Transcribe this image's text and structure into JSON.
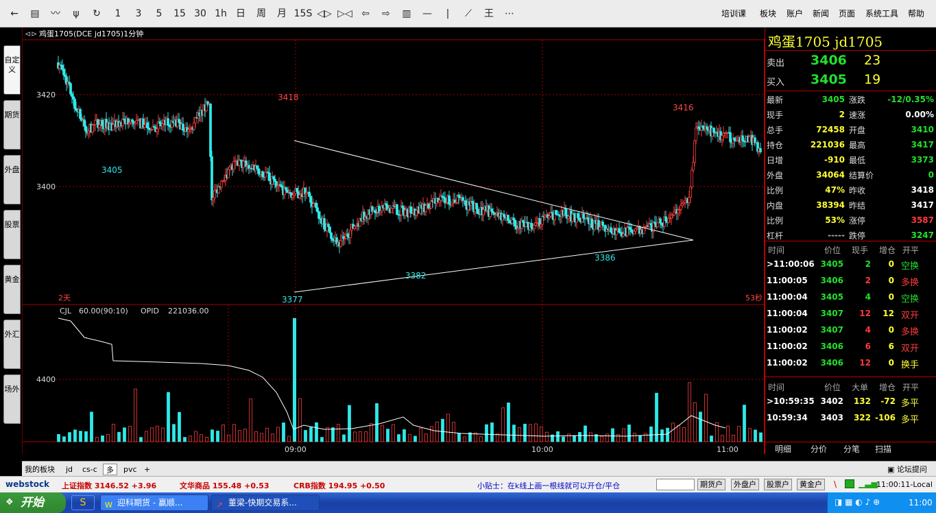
{
  "toolbar": {
    "icons": [
      "back-arrow-icon",
      "list-icon",
      "line-chart-icon",
      "candlestick-icon",
      "refresh-icon"
    ],
    "periods": [
      "1",
      "3",
      "5",
      "15",
      "30",
      "1h",
      "日",
      "周",
      "月",
      "15S"
    ],
    "tools": [
      "zoom-in-icon",
      "zoom-out-icon",
      "left-arrow-icon",
      "right-arrow-icon",
      "layout-icon",
      "hline-icon",
      "vline-icon",
      "draw-line-icon",
      "king-icon",
      "more-icon"
    ],
    "menus": [
      "培训课",
      "板块",
      "账户",
      "新闻",
      "页面",
      "系统工具",
      "帮助"
    ]
  },
  "side_tabs": [
    "自定义",
    "期货",
    "外盘",
    "股票",
    "黄金",
    "外汇",
    "场外"
  ],
  "chart": {
    "header": "鸡蛋1705(DCE jd1705)1分钟",
    "price_ticks": [
      "3420",
      "3400"
    ],
    "labels": {
      "hi1": "3418",
      "lo1": "3405",
      "lo2": "3377",
      "lo3": "3382",
      "lo4": "3386",
      "hi2": "3416"
    },
    "days": "2天",
    "countdown": "53秒",
    "volume_header": {
      "name": "CJL",
      "params": "60.00(90:10)",
      "opid_label": "OPID",
      "opid_value": "221036.00"
    },
    "volume_tick": "4400",
    "time_ticks": [
      "09:00",
      "10:00",
      "11:00"
    ]
  },
  "chart_data": {
    "type": "candlestick",
    "title": "鸡蛋1705(DCE jd1705)1分钟",
    "ylim": [
      3372,
      3430
    ],
    "price_ticks": [
      3420,
      3400
    ],
    "annotations": [
      3418,
      3405,
      3377,
      3382,
      3386,
      3416
    ],
    "x_ticks": [
      "09:00",
      "10:00",
      "11:00"
    ]
  },
  "quote": {
    "title": "鸡蛋1705  jd1705",
    "sell": {
      "label": "卖出",
      "price": "3406",
      "vol": "23"
    },
    "buy": {
      "label": "买入",
      "price": "3405",
      "vol": "19"
    },
    "rows": [
      {
        "l1": "最新",
        "v1": "3405",
        "c1": "green",
        "l2": "涨跌",
        "v2": "-12/0.35%",
        "c2": "green"
      },
      {
        "l1": "现手",
        "v1": "2",
        "c1": "yellow",
        "l2": "速涨",
        "v2": "0.00%",
        "c2": "white"
      },
      {
        "l1": "总手",
        "v1": "72458",
        "c1": "yellow",
        "l2": "开盘",
        "v2": "3410",
        "c2": "green"
      },
      {
        "l1": "持仓",
        "v1": "221036",
        "c1": "yellow",
        "l2": "最高",
        "v2": "3417",
        "c2": "green"
      },
      {
        "l1": "日增",
        "v1": "-910",
        "c1": "yellow",
        "l2": "最低",
        "v2": "3373",
        "c2": "green"
      },
      {
        "l1": "外盘",
        "v1": "34064",
        "c1": "yellow",
        "l2": "结算价",
        "v2": "0",
        "c2": "green"
      },
      {
        "l1": "比例",
        "v1": "47%",
        "c1": "yellow",
        "l2": "昨收",
        "v2": "3418",
        "c2": "white"
      },
      {
        "l1": "内盘",
        "v1": "38394",
        "c1": "yellow",
        "l2": "昨结",
        "v2": "3417",
        "c2": "white"
      },
      {
        "l1": "比例",
        "v1": "53%",
        "c1": "yellow",
        "l2": "涨停",
        "v2": "3587",
        "c2": "red"
      },
      {
        "l1": "杠杆",
        "v1": "-----",
        "c1": "gray",
        "l2": "跌停",
        "v2": "3247",
        "c2": "green"
      }
    ],
    "ticks_header": [
      "时间",
      "价位",
      "现手",
      "增仓",
      "开平"
    ],
    "ticks": [
      {
        "t": ">11:00:06",
        "p": "3405",
        "pc": "green",
        "v": "2",
        "vc": "green",
        "z": "0",
        "k": "空换",
        "kc": "green"
      },
      {
        "t": "11:00:05",
        "p": "3406",
        "pc": "green",
        "v": "2",
        "vc": "red",
        "z": "0",
        "k": "多换",
        "kc": "red"
      },
      {
        "t": "11:00:04",
        "p": "3405",
        "pc": "green",
        "v": "4",
        "vc": "green",
        "z": "0",
        "k": "空换",
        "kc": "green"
      },
      {
        "t": "11:00:04",
        "p": "3407",
        "pc": "green",
        "v": "12",
        "vc": "red",
        "z": "12",
        "k": "双开",
        "kc": "red"
      },
      {
        "t": "11:00:02",
        "p": "3407",
        "pc": "green",
        "v": "4",
        "vc": "red",
        "z": "0",
        "k": "多换",
        "kc": "red"
      },
      {
        "t": "11:00:02",
        "p": "3406",
        "pc": "green",
        "v": "6",
        "vc": "red",
        "z": "6",
        "k": "双开",
        "kc": "red"
      },
      {
        "t": "11:00:02",
        "p": "3406",
        "pc": "green",
        "v": "12",
        "vc": "red",
        "z": "0",
        "k": "换手",
        "kc": "yellow"
      }
    ],
    "big_header": [
      "时间",
      "价位",
      "大单",
      "增仓",
      "开平"
    ],
    "big": [
      {
        "t": ">10:59:35",
        "p": "3402",
        "v": "132",
        "z": "-72",
        "k": "多平"
      },
      {
        "t": "10:59:34",
        "p": "3403",
        "v": "322",
        "z": "-106",
        "k": "多平"
      }
    ],
    "tabs": [
      "明细",
      "分价",
      "分笔",
      "扫描"
    ]
  },
  "bottom_tabs": [
    "我的板块",
    "jd",
    "cs-c",
    "多",
    "pvc",
    "+"
  ],
  "forum": "论坛提问",
  "ticker": {
    "logo": "webstock",
    "items": [
      {
        "name": "上证指数",
        "val": "3146.52",
        "chg": "+3.96"
      },
      {
        "name": "文华商品",
        "val": "155.48",
        "chg": "+0.53"
      },
      {
        "name": "CRB指数",
        "val": "194.95",
        "chg": "+0.50"
      }
    ],
    "tip": "小贴士：在k线上画一根线就可以开仓/平仓",
    "buttons": [
      "期货户",
      "外盘户",
      "股票户",
      "黄金户"
    ],
    "clock": "11:00:11-Local"
  },
  "taskbar": {
    "start": "开始",
    "tasks": [
      "迎科期货 - 赢顺...",
      "董梁-快期交易系..."
    ],
    "time": "11:00"
  }
}
